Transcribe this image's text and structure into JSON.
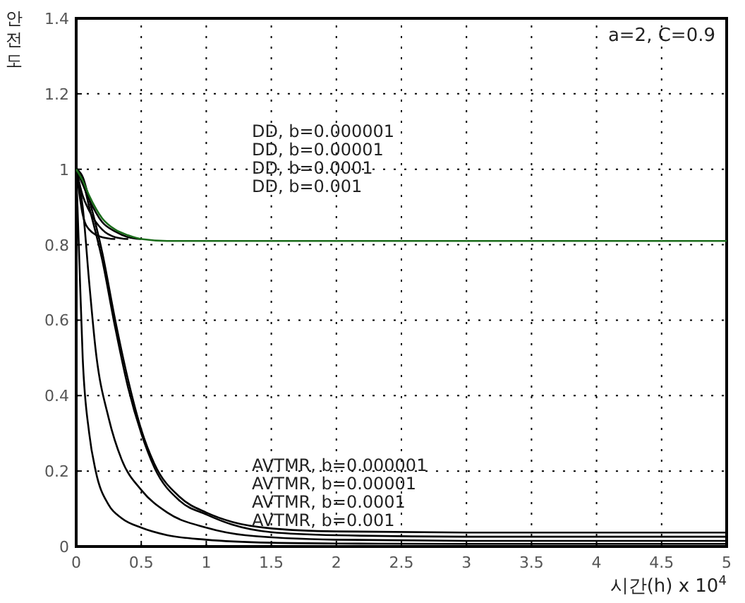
{
  "chart_data": {
    "type": "line",
    "xlabel": "시간(h) x 10$^{4}$",
    "ylabel": "안전도",
    "annotations": [
      "a=2, C=0.9",
      "DD, b=0.000001",
      "DD, b=0.00001",
      "DD, b=0.0001",
      "DD, b=0.001",
      "AVTMR, b=0.000001",
      "AVTMR, b=0.00001",
      "AVTMR, b=0.0001",
      "AVTMR, b=0.001"
    ],
    "xlim": [
      0,
      5
    ],
    "ylim": [
      0,
      1.4
    ],
    "xticks": [
      0,
      0.5,
      1,
      1.5,
      2,
      2.5,
      3,
      3.5,
      4,
      4.5,
      5
    ],
    "yticks": [
      0,
      0.2,
      0.4,
      0.6,
      0.8,
      1,
      1.2,
      1.4
    ],
    "grid": true,
    "line_style": "solid",
    "marker": "none",
    "series": [
      {
        "color": "#1a6b1a",
        "x": [
          0,
          0.05,
          0.1,
          0.2,
          0.3,
          0.4,
          0.5,
          0.7,
          1,
          2,
          3,
          4,
          5
        ],
        "values": [
          1,
          0.97,
          0.93,
          0.87,
          0.84,
          0.825,
          0.815,
          0.81,
          0.81,
          0.81,
          0.81,
          0.81,
          0.81
        ]
      },
      {
        "color": "#000000",
        "x": [
          0,
          0.05,
          0.1,
          0.2,
          0.3,
          0.4,
          0.5
        ],
        "values": [
          1,
          0.96,
          0.92,
          0.86,
          0.835,
          0.82,
          0.815
        ]
      },
      {
        "color": "#000000",
        "x": [
          0,
          0.05,
          0.1,
          0.2,
          0.3,
          0.4
        ],
        "values": [
          1,
          0.93,
          0.89,
          0.84,
          0.82,
          0.815
        ]
      },
      {
        "color": "#000000",
        "x": [
          0,
          0.05,
          0.1,
          0.2,
          0.3
        ],
        "values": [
          1,
          0.88,
          0.84,
          0.82,
          0.815
        ]
      },
      {
        "color": "#000000",
        "x": [
          0,
          0.05,
          0.1,
          0.2,
          0.3,
          0.4,
          0.5,
          0.6,
          0.8,
          1,
          1.2,
          1.5,
          2,
          3,
          4,
          5
        ],
        "values": [
          1,
          0.98,
          0.92,
          0.78,
          0.6,
          0.44,
          0.31,
          0.22,
          0.13,
          0.09,
          0.065,
          0.048,
          0.04,
          0.037,
          0.037,
          0.037
        ]
      },
      {
        "color": "#000000",
        "x": [
          0,
          0.05,
          0.1,
          0.2,
          0.3,
          0.4,
          0.5,
          0.6,
          0.8,
          1,
          1.2,
          1.5,
          2,
          3,
          4,
          5
        ],
        "values": [
          1,
          0.97,
          0.9,
          0.76,
          0.58,
          0.42,
          0.3,
          0.21,
          0.12,
          0.085,
          0.058,
          0.038,
          0.03,
          0.026,
          0.026,
          0.026
        ]
      },
      {
        "color": "#000000",
        "x": [
          0,
          0.05,
          0.1,
          0.15,
          0.25,
          0.35,
          0.5,
          0.7,
          1,
          1.3,
          2,
          3,
          4,
          5
        ],
        "values": [
          1,
          0.9,
          0.7,
          0.52,
          0.34,
          0.23,
          0.15,
          0.09,
          0.05,
          0.03,
          0.018,
          0.015,
          0.015,
          0.015
        ]
      },
      {
        "color": "#000000",
        "x": [
          0,
          0.02,
          0.05,
          0.1,
          0.15,
          0.25,
          0.35,
          0.5,
          0.7,
          1,
          1.5,
          2,
          3,
          4,
          5
        ],
        "values": [
          1,
          0.8,
          0.5,
          0.3,
          0.2,
          0.11,
          0.075,
          0.05,
          0.03,
          0.018,
          0.01,
          0.008,
          0.007,
          0.007,
          0.007
        ]
      }
    ]
  }
}
